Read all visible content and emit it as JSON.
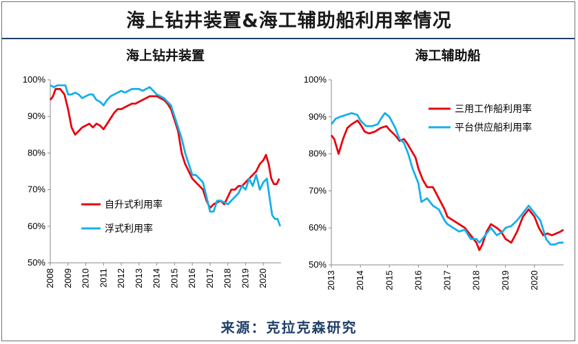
{
  "title": "海上钻井装置&海工辅助船利用率情况",
  "source": "来源：克拉克森研究",
  "colors": {
    "red": "#e8000b",
    "blue": "#14b0ea",
    "accent": "#1e3f66"
  },
  "chart_data": [
    {
      "type": "line",
      "title": "海上钻井装置",
      "x": [
        "2008",
        "2009",
        "2010",
        "2011",
        "2012",
        "2013",
        "2014",
        "2015",
        "2016",
        "2017",
        "2018",
        "2019",
        "2020"
      ],
      "y_ticks": [
        "50%",
        "60%",
        "70%",
        "80%",
        "90%",
        "100%"
      ],
      "ylim": [
        50,
        100
      ],
      "xlim": [
        2008,
        2021.0
      ],
      "grid": false,
      "legend": "middle-left",
      "series": [
        {
          "name": "自升式利用率",
          "color": "#e8000b",
          "points": [
            [
              2008.0,
              94.5
            ],
            [
              2008.15,
              95.5
            ],
            [
              2008.3,
              97.5
            ],
            [
              2008.55,
              97.5
            ],
            [
              2008.8,
              96
            ],
            [
              2009.0,
              92
            ],
            [
              2009.2,
              87
            ],
            [
              2009.4,
              85
            ],
            [
              2009.6,
              86
            ],
            [
              2009.8,
              87
            ],
            [
              2010.0,
              87.5
            ],
            [
              2010.2,
              88
            ],
            [
              2010.4,
              87
            ],
            [
              2010.6,
              88
            ],
            [
              2010.8,
              87.5
            ],
            [
              2011.0,
              86.5
            ],
            [
              2011.2,
              88
            ],
            [
              2011.4,
              89.5
            ],
            [
              2011.6,
              91
            ],
            [
              2011.8,
              92
            ],
            [
              2012.0,
              92
            ],
            [
              2012.2,
              92.5
            ],
            [
              2012.4,
              93
            ],
            [
              2012.6,
              93.5
            ],
            [
              2012.8,
              93.5
            ],
            [
              2013.0,
              94
            ],
            [
              2013.2,
              94.5
            ],
            [
              2013.4,
              95
            ],
            [
              2013.6,
              95.5
            ],
            [
              2013.8,
              95.5
            ],
            [
              2014.0,
              95.5
            ],
            [
              2014.2,
              95
            ],
            [
              2014.4,
              94.5
            ],
            [
              2014.6,
              93.5
            ],
            [
              2014.8,
              92
            ],
            [
              2015.0,
              89
            ],
            [
              2015.2,
              86
            ],
            [
              2015.4,
              80
            ],
            [
              2015.6,
              77
            ],
            [
              2015.8,
              75
            ],
            [
              2016.0,
              73
            ],
            [
              2016.2,
              72
            ],
            [
              2016.4,
              71
            ],
            [
              2016.6,
              70
            ],
            [
              2016.8,
              67
            ],
            [
              2017.0,
              65
            ],
            [
              2017.2,
              66
            ],
            [
              2017.4,
              66.5
            ],
            [
              2017.6,
              67
            ],
            [
              2017.8,
              66
            ],
            [
              2018.0,
              68
            ],
            [
              2018.2,
              70
            ],
            [
              2018.4,
              70
            ],
            [
              2018.6,
              71
            ],
            [
              2018.8,
              71
            ],
            [
              2019.0,
              72
            ],
            [
              2019.2,
              73
            ],
            [
              2019.4,
              74
            ],
            [
              2019.6,
              75
            ],
            [
              2019.8,
              77
            ],
            [
              2020.0,
              78
            ],
            [
              2020.15,
              79.5
            ],
            [
              2020.3,
              77
            ],
            [
              2020.45,
              73
            ],
            [
              2020.6,
              71.5
            ],
            [
              2020.75,
              71.5
            ],
            [
              2020.9,
              73
            ]
          ]
        },
        {
          "name": "浮式利用率",
          "color": "#14b0ea",
          "points": [
            [
              2008.0,
              98.5
            ],
            [
              2008.2,
              98
            ],
            [
              2008.4,
              98.5
            ],
            [
              2008.6,
              98.5
            ],
            [
              2008.85,
              98.5
            ],
            [
              2009.0,
              96
            ],
            [
              2009.2,
              96
            ],
            [
              2009.4,
              96.5
            ],
            [
              2009.6,
              96
            ],
            [
              2009.8,
              95
            ],
            [
              2010.0,
              95.5
            ],
            [
              2010.2,
              96
            ],
            [
              2010.4,
              96
            ],
            [
              2010.6,
              94.5
            ],
            [
              2010.8,
              94
            ],
            [
              2011.0,
              93
            ],
            [
              2011.2,
              94.5
            ],
            [
              2011.4,
              95.5
            ],
            [
              2011.6,
              96
            ],
            [
              2011.8,
              96.5
            ],
            [
              2012.0,
              97
            ],
            [
              2012.2,
              96.5
            ],
            [
              2012.4,
              97
            ],
            [
              2012.6,
              97.5
            ],
            [
              2012.8,
              97.5
            ],
            [
              2013.0,
              97.5
            ],
            [
              2013.2,
              97
            ],
            [
              2013.4,
              97.5
            ],
            [
              2013.6,
              98
            ],
            [
              2013.8,
              97
            ],
            [
              2014.0,
              96
            ],
            [
              2014.2,
              95.5
            ],
            [
              2014.4,
              95
            ],
            [
              2014.6,
              94
            ],
            [
              2014.8,
              93
            ],
            [
              2015.0,
              90
            ],
            [
              2015.2,
              87
            ],
            [
              2015.4,
              84
            ],
            [
              2015.6,
              80
            ],
            [
              2015.8,
              77
            ],
            [
              2016.0,
              74
            ],
            [
              2016.2,
              74
            ],
            [
              2016.4,
              73
            ],
            [
              2016.6,
              72
            ],
            [
              2016.8,
              68
            ],
            [
              2017.0,
              64
            ],
            [
              2017.2,
              64
            ],
            [
              2017.4,
              67
            ],
            [
              2017.6,
              67
            ],
            [
              2017.8,
              66.5
            ],
            [
              2018.0,
              66
            ],
            [
              2018.2,
              67
            ],
            [
              2018.4,
              68
            ],
            [
              2018.6,
              69
            ],
            [
              2018.8,
              71
            ],
            [
              2019.0,
              70
            ],
            [
              2019.2,
              73
            ],
            [
              2019.4,
              71
            ],
            [
              2019.6,
              74
            ],
            [
              2019.8,
              70
            ],
            [
              2020.0,
              72
            ],
            [
              2020.2,
              73
            ],
            [
              2020.35,
              68
            ],
            [
              2020.5,
              63
            ],
            [
              2020.65,
              62
            ],
            [
              2020.8,
              62
            ],
            [
              2020.95,
              60
            ]
          ]
        }
      ]
    },
    {
      "type": "line",
      "title": "海工辅助船",
      "x": [
        "2013",
        "2014",
        "2015",
        "2016",
        "2017",
        "2018",
        "2019",
        "2020"
      ],
      "y_ticks": [
        "50%",
        "60%",
        "70%",
        "80%",
        "90%",
        "100%"
      ],
      "ylim": [
        50,
        100
      ],
      "xlim": [
        2013,
        2021.0
      ],
      "grid": false,
      "legend": "top-right",
      "series": [
        {
          "name": "三用工作船利用率",
          "color": "#e8000b",
          "points": [
            [
              2013.0,
              85
            ],
            [
              2013.1,
              84
            ],
            [
              2013.25,
              80
            ],
            [
              2013.4,
              84
            ],
            [
              2013.55,
              87
            ],
            [
              2013.7,
              88
            ],
            [
              2013.9,
              89
            ],
            [
              2014.0,
              88
            ],
            [
              2014.15,
              86
            ],
            [
              2014.3,
              85.5
            ],
            [
              2014.5,
              86
            ],
            [
              2014.7,
              87
            ],
            [
              2014.9,
              87.5
            ],
            [
              2015.0,
              86.5
            ],
            [
              2015.2,
              85
            ],
            [
              2015.35,
              83.5
            ],
            [
              2015.5,
              84
            ],
            [
              2015.6,
              83
            ],
            [
              2015.75,
              81
            ],
            [
              2015.9,
              79
            ],
            [
              2016.0,
              76
            ],
            [
              2016.15,
              73
            ],
            [
              2016.3,
              71
            ],
            [
              2016.5,
              71
            ],
            [
              2016.7,
              68
            ],
            [
              2016.9,
              65
            ],
            [
              2017.0,
              63
            ],
            [
              2017.2,
              62
            ],
            [
              2017.4,
              61
            ],
            [
              2017.6,
              60
            ],
            [
              2017.8,
              58
            ],
            [
              2018.0,
              56
            ],
            [
              2018.1,
              54
            ],
            [
              2018.2,
              55.5
            ],
            [
              2018.35,
              59
            ],
            [
              2018.5,
              61
            ],
            [
              2018.7,
              60
            ],
            [
              2018.85,
              59
            ],
            [
              2019.0,
              57
            ],
            [
              2019.2,
              56
            ],
            [
              2019.4,
              59
            ],
            [
              2019.6,
              63
            ],
            [
              2019.8,
              65
            ],
            [
              2020.0,
              63
            ],
            [
              2020.15,
              60
            ],
            [
              2020.3,
              58
            ],
            [
              2020.45,
              58.5
            ],
            [
              2020.6,
              58
            ],
            [
              2020.75,
              58.5
            ],
            [
              2020.9,
              59
            ],
            [
              2021.0,
              59.5
            ]
          ]
        },
        {
          "name": "平台供应船利用率",
          "color": "#14b0ea",
          "points": [
            [
              2013.0,
              88
            ],
            [
              2013.15,
              89.5
            ],
            [
              2013.3,
              90
            ],
            [
              2013.5,
              90.5
            ],
            [
              2013.7,
              91
            ],
            [
              2013.9,
              90.5
            ],
            [
              2014.0,
              89
            ],
            [
              2014.2,
              87.5
            ],
            [
              2014.4,
              87.5
            ],
            [
              2014.6,
              88
            ],
            [
              2014.75,
              90
            ],
            [
              2014.85,
              91
            ],
            [
              2015.0,
              90
            ],
            [
              2015.2,
              87
            ],
            [
              2015.35,
              84
            ],
            [
              2015.5,
              83
            ],
            [
              2015.65,
              80
            ],
            [
              2015.8,
              76
            ],
            [
              2016.0,
              72
            ],
            [
              2016.1,
              67
            ],
            [
              2016.3,
              68
            ],
            [
              2016.5,
              66
            ],
            [
              2016.7,
              65
            ],
            [
              2016.9,
              62
            ],
            [
              2017.0,
              61
            ],
            [
              2017.2,
              60
            ],
            [
              2017.4,
              59
            ],
            [
              2017.6,
              59.5
            ],
            [
              2017.8,
              57
            ],
            [
              2018.0,
              57
            ],
            [
              2018.1,
              56
            ],
            [
              2018.3,
              58
            ],
            [
              2018.5,
              60
            ],
            [
              2018.7,
              58
            ],
            [
              2018.9,
              59
            ],
            [
              2019.0,
              60
            ],
            [
              2019.2,
              60.5
            ],
            [
              2019.4,
              62
            ],
            [
              2019.6,
              64
            ],
            [
              2019.8,
              66
            ],
            [
              2020.0,
              64
            ],
            [
              2020.2,
              62
            ],
            [
              2020.4,
              57
            ],
            [
              2020.55,
              55.5
            ],
            [
              2020.7,
              55.5
            ],
            [
              2020.85,
              56
            ],
            [
              2021.0,
              56
            ]
          ]
        }
      ]
    }
  ]
}
